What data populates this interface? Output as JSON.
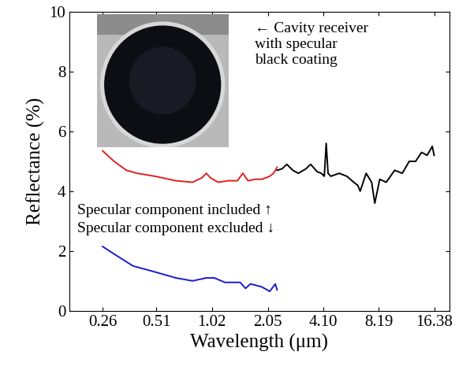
{
  "chart_data": {
    "type": "line",
    "x_label": "Wavelength (μm)",
    "y_label": "Reflectance (%)",
    "log": "x",
    "grid": false,
    "xlim": [
      0.172,
      19.8
    ],
    "xticks": [
      0.26,
      0.51,
      1.02,
      2.05,
      {
        "value": 4.1,
        "label": "4.10"
      },
      8.19,
      16.38
    ],
    "ylim": [
      0,
      10
    ],
    "yticks": [
      0,
      2,
      4,
      6,
      8,
      10
    ],
    "annotations": [
      "← Cavity receiver\nwith specular\nblack coating",
      "Specular component included ↑",
      "Specular component excluded ↓"
    ],
    "series": [
      {
        "color": "#e02020",
        "x": [
          0.26,
          0.3,
          0.35,
          0.4,
          0.5,
          0.65,
          0.8,
          0.9,
          0.95,
          1.0,
          1.1,
          1.25,
          1.4,
          1.5,
          1.6,
          1.75,
          1.9,
          2.1,
          2.2,
          2.3
        ],
        "values": [
          5.35,
          5.0,
          4.7,
          4.6,
          4.5,
          4.35,
          4.3,
          4.45,
          4.6,
          4.45,
          4.3,
          4.35,
          4.35,
          4.6,
          4.35,
          4.4,
          4.4,
          4.5,
          4.6,
          4.8
        ]
      },
      {
        "color": "#000000",
        "x": [
          2.3,
          2.45,
          2.6,
          2.8,
          3.0,
          3.3,
          3.5,
          3.8,
          4.0,
          4.15,
          4.25,
          4.35,
          4.5,
          5.0,
          5.5,
          6.0,
          6.3,
          6.5,
          7.0,
          7.5,
          7.8,
          8.3,
          9.0,
          10.0,
          11.0,
          12.0,
          13.0,
          14.0,
          15.0,
          16.0,
          16.38
        ],
        "values": [
          4.7,
          4.75,
          4.9,
          4.7,
          4.6,
          4.75,
          4.9,
          4.65,
          4.6,
          4.5,
          5.6,
          4.6,
          4.5,
          4.6,
          4.5,
          4.3,
          4.2,
          4.0,
          4.6,
          4.3,
          3.6,
          4.4,
          4.3,
          4.7,
          4.6,
          5.0,
          5.0,
          5.3,
          5.2,
          5.5,
          5.2
        ]
      },
      {
        "color": "#1a1ad0",
        "x": [
          0.26,
          0.3,
          0.38,
          0.5,
          0.65,
          0.8,
          0.95,
          1.05,
          1.2,
          1.45,
          1.55,
          1.65,
          1.9,
          2.1,
          2.25,
          2.3
        ],
        "values": [
          2.15,
          1.9,
          1.5,
          1.3,
          1.1,
          1.0,
          1.1,
          1.1,
          0.95,
          0.95,
          0.75,
          0.9,
          0.8,
          0.65,
          0.9,
          0.7
        ]
      }
    ]
  }
}
